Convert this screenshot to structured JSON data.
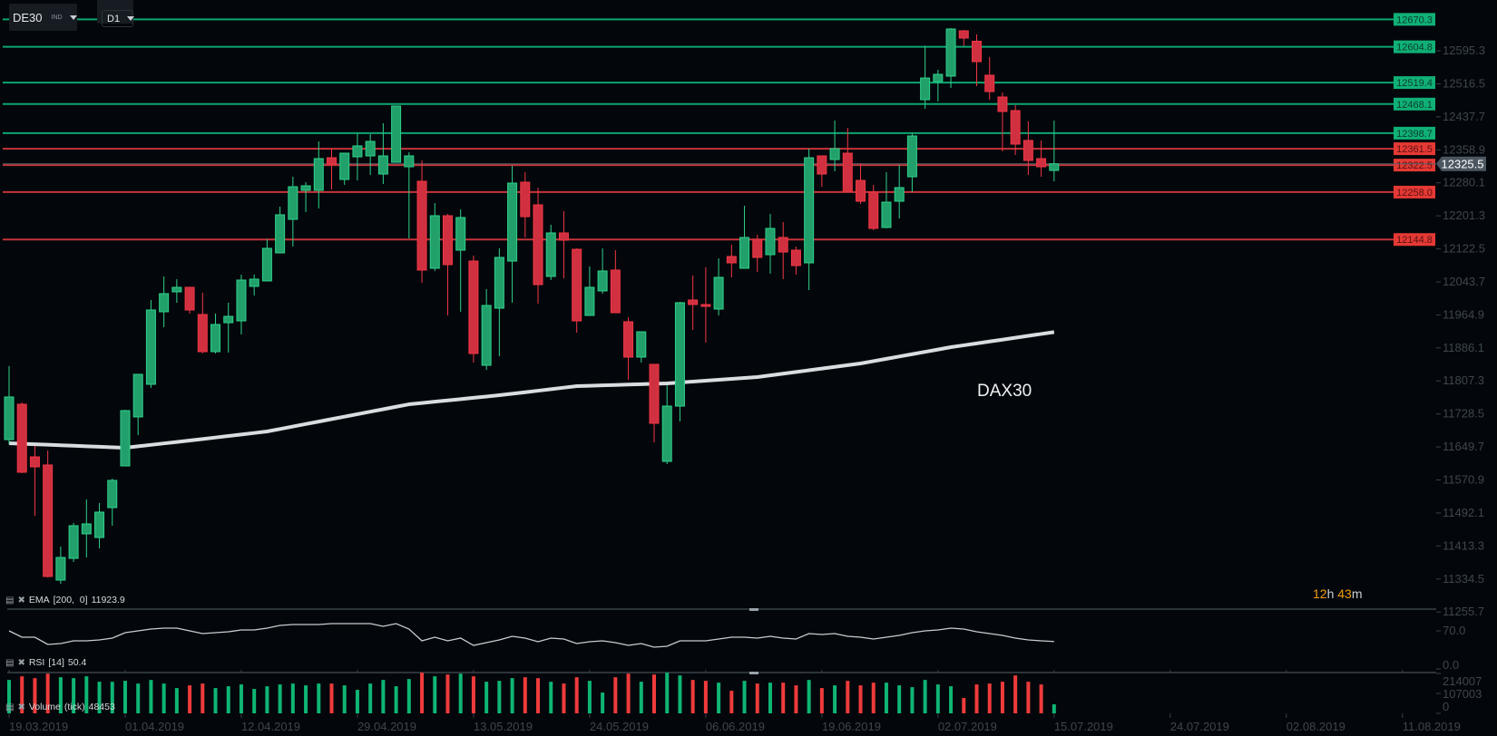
{
  "toolbar": {
    "symbol": "DE30",
    "symbol_type": "IND",
    "timeframe": "D1"
  },
  "watermark": "DAX30",
  "countdown": {
    "hours": "12",
    "hours_unit": "h",
    "minutes": "43",
    "minutes_unit": "m"
  },
  "indicators": {
    "ema": {
      "name": "EMA",
      "params": "[200,  0]",
      "value": "11923.9"
    },
    "rsi": {
      "name": "RSI",
      "params": "[14]",
      "value": "50.4"
    },
    "volume": {
      "name": "Volume",
      "params": "(tick)",
      "value": "48453"
    }
  },
  "colors": {
    "background": "#03070b",
    "bull": "#22a06b",
    "bull_border": "#2fd08a",
    "bear": "#d0303f",
    "bear_border": "#f23645",
    "level_green": "#0ea56f",
    "level_red": "#c6343a",
    "ema": "#d9dde0",
    "countdown": "#f39c12"
  },
  "current_price": "12325.5",
  "levels": [
    {
      "price": "12670.3",
      "color": "green"
    },
    {
      "price": "12604.8",
      "color": "green"
    },
    {
      "price": "12519.4",
      "color": "green"
    },
    {
      "price": "12468.1",
      "color": "green"
    },
    {
      "price": "12398.7",
      "color": "green"
    },
    {
      "price": "12361.5",
      "color": "red"
    },
    {
      "price": "12322.5",
      "color": "red"
    },
    {
      "price": "12258.0",
      "color": "red"
    },
    {
      "price": "12144.8",
      "color": "red"
    }
  ],
  "price_axis": [
    "12595.3",
    "12516.5",
    "12437.7",
    "12358.9",
    "12280.1",
    "12201.3",
    "12122.5",
    "12043.7",
    "11964.9",
    "11886.1",
    "11807.3",
    "11728.5",
    "11649.7",
    "11570.9",
    "11492.1",
    "11413.3",
    "11334.5",
    "11255.7"
  ],
  "rsi_axis": [
    "70.0",
    "0.0"
  ],
  "volume_axis": [
    "214007",
    "107003",
    "0"
  ],
  "date_axis": [
    "19.03.2019",
    "01.04.2019",
    "12.04.2019",
    "29.04.2019",
    "13.05.2019",
    "24.05.2019",
    "06.06.2019",
    "19.06.2019",
    "02.07.2019",
    "15.07.2019",
    "24.07.2019",
    "02.08.2019",
    "11.08.2019"
  ],
  "chart_data": {
    "type": "candlestick",
    "ylim": [
      11262.6,
      12716.5
    ],
    "date_tick_every_n_bars": 9,
    "ohlc": [
      [
        11667.2,
        11842.4,
        11656.3,
        11768.9
      ],
      [
        11751.6,
        11755.9,
        11587.1,
        11589.3
      ],
      [
        11626.0,
        11652.0,
        11485.4,
        11602.2
      ],
      [
        11606.6,
        11641.2,
        11338.3,
        11340.5
      ],
      [
        11331.8,
        11411.9,
        11323.2,
        11385.9
      ],
      [
        11383.7,
        11468.1,
        11375.1,
        11461.6
      ],
      [
        11442.2,
        11524.3,
        11385.9,
        11466.0
      ],
      [
        11433.5,
        11515.7,
        11407.5,
        11494.1
      ],
      [
        11504.9,
        11574.1,
        11461.6,
        11569.8
      ],
      [
        11604.4,
        11738.6,
        11604.4,
        11736.4
      ],
      [
        11721.3,
        11823.0,
        11678.0,
        11823.0
      ],
      [
        11799.2,
        12000.4,
        11790.5,
        11976.6
      ],
      [
        11972.3,
        12056.7,
        11935.5,
        12015.5
      ],
      [
        12019.9,
        12050.2,
        11993.9,
        12030.7
      ],
      [
        12030.7,
        12030.7,
        11967.9,
        11976.6
      ],
      [
        11965.8,
        12017.7,
        11872.7,
        11877.1
      ],
      [
        11877.1,
        11967.9,
        11872.7,
        11942.0
      ],
      [
        11946.3,
        11993.9,
        11874.9,
        11961.4
      ],
      [
        11950.6,
        12061.0,
        11918.2,
        12048.0
      ],
      [
        12032.9,
        12061.0,
        12011.2,
        12050.2
      ],
      [
        12045.9,
        12145.3,
        12045.9,
        12123.7
      ],
      [
        12112.9,
        12223.2,
        12112.9,
        12203.8
      ],
      [
        12192.9,
        12294.6,
        12128.0,
        12270.8
      ],
      [
        12262.1,
        12281.6,
        12210.2,
        12273.0
      ],
      [
        12262.1,
        12379.0,
        12218.9,
        12337.9
      ],
      [
        12340.0,
        12361.7,
        12264.3,
        12324.9
      ],
      [
        12288.1,
        12350.9,
        12275.1,
        12350.9
      ],
      [
        12342.2,
        12398.4,
        12285.9,
        12368.2
      ],
      [
        12344.4,
        12396.3,
        12298.9,
        12379.0
      ],
      [
        12301.1,
        12422.3,
        12277.3,
        12344.4
      ],
      [
        12329.2,
        12463.4,
        12329.2,
        12463.4
      ],
      [
        12318.4,
        12353.0,
        12147.5,
        12344.4
      ],
      [
        12283.8,
        12333.5,
        12041.5,
        12071.8
      ],
      [
        12076.1,
        12231.9,
        12069.7,
        12201.6
      ],
      [
        12201.6,
        12205.9,
        11963.6,
        12084.8
      ],
      [
        12119.4,
        12216.7,
        11972.3,
        12197.3
      ],
      [
        12093.4,
        12106.4,
        11851.1,
        11872.7
      ],
      [
        11844.6,
        12026.3,
        11833.8,
        11987.4
      ],
      [
        11980.9,
        12123.7,
        11866.2,
        12102.1
      ],
      [
        12093.4,
        12320.6,
        11993.9,
        12279.5
      ],
      [
        12281.6,
        12305.4,
        12149.7,
        12199.4
      ],
      [
        12227.5,
        12268.7,
        11991.7,
        12037.2
      ],
      [
        12056.7,
        12180.0,
        12048.0,
        12160.5
      ],
      [
        12160.5,
        12212.4,
        12052.4,
        12143.2
      ],
      [
        12121.5,
        12123.7,
        11922.5,
        11950.6
      ],
      [
        11963.6,
        12080.5,
        11963.6,
        12030.7
      ],
      [
        12022.1,
        12123.7,
        12015.5,
        12069.7
      ],
      [
        12071.8,
        12119.4,
        11970.1,
        11970.1
      ],
      [
        11948.5,
        11959.3,
        11810.0,
        11864.1
      ],
      [
        11864.1,
        11924.6,
        11851.1,
        11924.6
      ],
      [
        11846.8,
        11846.8,
        11660.7,
        11706.1
      ],
      [
        11615.2,
        11797.0,
        11608.7,
        11747.2
      ],
      [
        11747.2,
        11996.1,
        11710.4,
        11993.9
      ],
      [
        12000.4,
        12058.8,
        11929.0,
        11989.6
      ],
      [
        11989.6,
        12078.3,
        11898.7,
        11985.2
      ],
      [
        11978.7,
        12099.9,
        11963.6,
        12054.5
      ],
      [
        12104.3,
        12132.4,
        12054.5,
        12089.1
      ],
      [
        12076.1,
        12225.4,
        12076.1,
        12149.7
      ],
      [
        12145.3,
        12156.2,
        12067.5,
        12102.1
      ],
      [
        12108.6,
        12205.9,
        12063.2,
        12171.3
      ],
      [
        12149.7,
        12186.4,
        12050.2,
        12115.0
      ],
      [
        12119.4,
        12128.0,
        12061.0,
        12082.6
      ],
      [
        12089.1,
        12361.7,
        12024.2,
        12340.0
      ],
      [
        12344.4,
        12344.4,
        12270.8,
        12301.1
      ],
      [
        12335.7,
        12428.7,
        12307.6,
        12361.7
      ],
      [
        12350.9,
        12411.4,
        12260.0,
        12260.0
      ],
      [
        12285.9,
        12327.1,
        12229.7,
        12236.2
      ],
      [
        12257.8,
        12275.1,
        12167.0,
        12171.3
      ],
      [
        12173.5,
        12305.4,
        12171.3,
        12234.0
      ],
      [
        12236.2,
        12322.7,
        12195.1,
        12268.7
      ],
      [
        12294.6,
        12398.4,
        12257.8,
        12392.0
      ],
      [
        12478.5,
        12607.3,
        12456.9,
        12530.4
      ],
      [
        12521.8,
        12549.9,
        12474.2,
        12539.1
      ],
      [
        12534.8,
        12649.4,
        12506.6,
        12647.3
      ],
      [
        12642.9,
        12645.1,
        12607.3,
        12625.6
      ],
      [
        12618.1,
        12634.3,
        12511.0,
        12569.4
      ],
      [
        12536.9,
        12580.2,
        12478.5,
        12497.9
      ],
      [
        12485.0,
        12495.8,
        12355.2,
        12450.4
      ],
      [
        12452.5,
        12465.5,
        12346.5,
        12372.5
      ],
      [
        12381.2,
        12426.6,
        12298.9,
        12333.5
      ],
      [
        12337.9,
        12381.2,
        12294.6,
        12318.4
      ],
      [
        12309.7,
        12428.7,
        12283.8,
        12325.5
      ]
    ],
    "ema200": [
      11658.5,
      11657.3,
      11656.1,
      11654.9,
      11653.7,
      11652.5,
      11651.3,
      11650.1,
      11648.9,
      11647.7,
      11651.2,
      11654.6,
      11658.1,
      11661.5,
      11665.0,
      11668.6,
      11672.2,
      11675.8,
      11679.4,
      11683.0,
      11686.6,
      11692.5,
      11698.4,
      11704.3,
      11710.2,
      11716.1,
      11722.0,
      11727.9,
      11733.8,
      11739.7,
      11745.6,
      11751.5,
      11754.6,
      11757.7,
      11760.8,
      11763.8,
      11766.9,
      11770.0,
      11773.1,
      11776.7,
      11780.3,
      11783.9,
      11787.6,
      11791.2,
      11794.8,
      11795.7,
      11796.7,
      11797.6,
      11798.5,
      11799.4,
      11800.4,
      11801.3,
      11803.5,
      11805.7,
      11807.8,
      11810.0,
      11812.2,
      11814.3,
      11816.4,
      11820.5,
      11824.5,
      11828.6,
      11832.7,
      11836.7,
      11840.8,
      11844.8,
      11848.9,
      11854.5,
      11860.0,
      11865.6,
      11871.1,
      11876.7,
      11882.2,
      11887.8,
      11892.3,
      11896.8,
      11901.3,
      11905.8,
      11910.3,
      11914.9,
      11919.4,
      11923.9
    ],
    "rsi": [
      70.0,
      58.3,
      58.3,
      45.0,
      46.7,
      51.7,
      51.7,
      53.3,
      56.7,
      66.7,
      70.0,
      73.3,
      75.0,
      75.0,
      70.0,
      65.0,
      66.7,
      68.3,
      71.7,
      71.7,
      75.0,
      80.0,
      81.7,
      81.7,
      81.7,
      83.3,
      83.3,
      83.3,
      83.3,
      78.3,
      83.3,
      73.3,
      51.7,
      58.3,
      51.7,
      56.7,
      43.3,
      48.3,
      53.3,
      60.0,
      56.7,
      50.0,
      56.7,
      55.0,
      46.7,
      50.0,
      51.7,
      48.3,
      43.3,
      46.7,
      40.0,
      41.7,
      51.7,
      51.7,
      51.7,
      55.0,
      58.3,
      58.3,
      56.7,
      60.0,
      56.7,
      55.0,
      65.0,
      63.3,
      65.0,
      60.0,
      58.3,
      55.0,
      58.3,
      61.7,
      66.7,
      70.0,
      71.7,
      75.0,
      73.3,
      68.3,
      65.0,
      61.7,
      56.7,
      53.3,
      51.7,
      50.4
    ],
    "rsi_ylim": [
      0,
      116.7
    ],
    "volume": [
      179265,
      198645,
      188955,
      213180,
      193800,
      188955,
      198645,
      169575,
      169575,
      174420,
      159885,
      179265,
      159885,
      135660,
      150195,
      159885,
      135660,
      145350,
      155040,
      130815,
      145350,
      155040,
      159885,
      150195,
      159885,
      159885,
      150195,
      125970,
      159885,
      179265,
      145350,
      184110,
      218025,
      198645,
      208335,
      213180,
      198645,
      169575,
      174420,
      188955,
      193800,
      188955,
      169575,
      159885,
      193800,
      174420,
      111435,
      193800,
      213180,
      169575,
      208335,
      218025,
      203490,
      179265,
      174420,
      164730,
      121125,
      174420,
      159885,
      164730,
      164730,
      150195,
      179265,
      135660,
      150195,
      174420,
      150195,
      164730,
      164730,
      150195,
      140505,
      179265,
      155040,
      145350,
      82365,
      155040,
      159885,
      169575,
      203490,
      169575,
      155040,
      48453
    ],
    "volume_ylim": [
      0,
      214007
    ]
  }
}
